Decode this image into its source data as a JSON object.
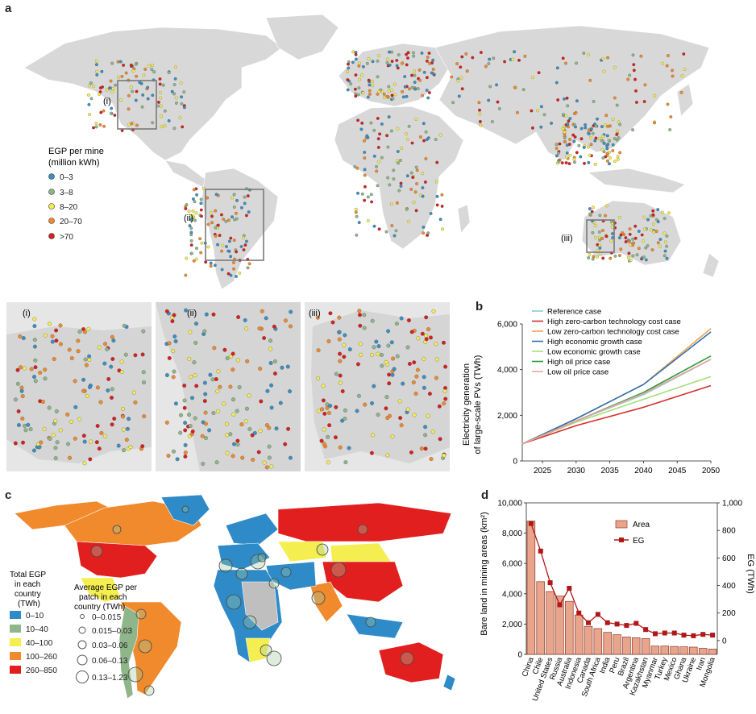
{
  "panels": {
    "a": "a",
    "b": "b",
    "c": "c",
    "d": "d"
  },
  "mapA": {
    "legend_title_1": "EGP per mine",
    "legend_title_2": "(million kWh)",
    "bins": [
      {
        "label": "0–3",
        "color": "#3b8fc2"
      },
      {
        "label": "3–8",
        "color": "#8fb58a"
      },
      {
        "label": "8–20",
        "color": "#f4ee50"
      },
      {
        "label": "20–70",
        "color": "#f08a2c"
      },
      {
        "label": ">70",
        "color": "#d81e1e"
      }
    ],
    "insets": [
      "(i)",
      "(ii)",
      "(iii)"
    ]
  },
  "mapC": {
    "legend1_title": [
      "Total EGP",
      "in each",
      "country",
      "(TWh)"
    ],
    "legend1": [
      {
        "label": "0–10",
        "color": "#2e8bc8"
      },
      {
        "label": "10–40",
        "color": "#8fb58a"
      },
      {
        "label": "40–100",
        "color": "#f4ee50"
      },
      {
        "label": "100–260",
        "color": "#f08a2c"
      },
      {
        "label": "260–850",
        "color": "#e21f1f"
      }
    ],
    "legend2_title": [
      "Average EGP per",
      "patch in each",
      "country (TWh)"
    ],
    "legend2": [
      "0–0.015",
      "0.015–0.03",
      "0.03–0.06",
      "0.06–0.13",
      "0.13–1.23"
    ]
  },
  "chart_data": [
    {
      "type": "line",
      "title": "",
      "ylabel_line1": "Electricity generation",
      "ylabel_line2": "of large-scale PVs (TWh)",
      "xlabel": "",
      "x": [
        2022,
        2030,
        2040,
        2050
      ],
      "xticks": [
        2025,
        2030,
        2035,
        2040,
        2045,
        2050
      ],
      "xlim": [
        2022,
        2050
      ],
      "yticks": [
        0,
        2000,
        4000,
        6000
      ],
      "ytick_labels": [
        "0",
        "2,000",
        "4,000",
        "6,000"
      ],
      "ylim": [
        0,
        6000
      ],
      "series": [
        {
          "name": "Reference case",
          "color": "#7fd3c8",
          "values": [
            750,
            1750,
            2900,
            4450
          ]
        },
        {
          "name": "High zero-carbon technology cost case",
          "color": "#d62d2d",
          "values": [
            750,
            1550,
            2350,
            3300
          ]
        },
        {
          "name": "Low zero-carbon technology cost case",
          "color": "#f0a34a",
          "values": [
            750,
            1850,
            3350,
            5800
          ]
        },
        {
          "name": "High economic growth case",
          "color": "#2f6fb0",
          "values": [
            750,
            1850,
            3350,
            5650
          ]
        },
        {
          "name": "Low economic growth case",
          "color": "#a6dd7a",
          "values": [
            750,
            1700,
            2700,
            3700
          ]
        },
        {
          "name": "High oil price case",
          "color": "#2e9a3c",
          "values": [
            750,
            1750,
            3000,
            4600
          ]
        },
        {
          "name": "Low oil price case",
          "color": "#f0a0a0",
          "values": [
            750,
            1750,
            2950,
            4450
          ]
        }
      ]
    },
    {
      "type": "bar",
      "categories": [
        "China",
        "Chile",
        "United States",
        "Russia",
        "Australia",
        "Indonesia",
        "Canada",
        "South Africa",
        "India",
        "Peru",
        "Brazil",
        "Argentina",
        "Kazakhstan",
        "Myanmar",
        "Turkey",
        "Mexico",
        "Ghana",
        "Ukraine",
        "Iran",
        "Mongolia"
      ],
      "series": [
        {
          "name": "Area",
          "color": "#e9a48c",
          "values": [
            8800,
            4800,
            4150,
            3850,
            3500,
            2600,
            1850,
            1700,
            1450,
            1300,
            1150,
            1100,
            1050,
            550,
            550,
            520,
            500,
            480,
            400,
            350
          ]
        },
        {
          "name": "EG",
          "color": "#b01818",
          "values": [
            850,
            650,
            420,
            260,
            380,
            200,
            130,
            190,
            130,
            120,
            110,
            125,
            80,
            50,
            55,
            55,
            40,
            35,
            45,
            40
          ]
        }
      ],
      "ylabel": "Bare land in mining areas (km²)",
      "ylim": [
        0,
        10000
      ],
      "yticks": [
        "0",
        "2,000",
        "4,000",
        "6,000",
        "8,000",
        "10,000"
      ],
      "y2label": "EG (TWh)",
      "y2lim": [
        -100,
        1000
      ],
      "y2ticks": [
        "0",
        "200",
        "400",
        "600",
        "800",
        "1,000"
      ],
      "legend": [
        "Area",
        "EG"
      ]
    }
  ]
}
